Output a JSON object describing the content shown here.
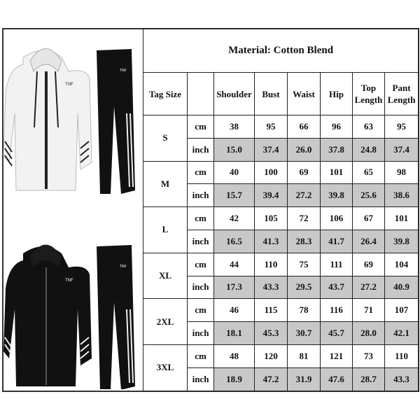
{
  "title": "Material: Cotton Blend",
  "headers": [
    "Tag Size",
    "",
    "Shoulder",
    "Bust",
    "Waist",
    "Hip",
    "Top Length",
    "Pant Length"
  ],
  "header_lines": {
    "top": [
      "Top",
      "Length"
    ],
    "pant": [
      "Pant",
      "Length"
    ]
  },
  "units": [
    "cm",
    "inch"
  ],
  "sizes": [
    {
      "size": "S",
      "cm": [
        "38",
        "95",
        "66",
        "96",
        "63",
        "95"
      ],
      "inch": [
        "15.0",
        "37.4",
        "26.0",
        "37.8",
        "24.8",
        "37.4"
      ]
    },
    {
      "size": "M",
      "cm": [
        "40",
        "100",
        "69",
        "101",
        "65",
        "98"
      ],
      "inch": [
        "15.7",
        "39.4",
        "27.2",
        "39.8",
        "25.6",
        "38.6"
      ]
    },
    {
      "size": "L",
      "cm": [
        "42",
        "105",
        "72",
        "106",
        "67",
        "101"
      ],
      "inch": [
        "16.5",
        "41.3",
        "28.3",
        "41.7",
        "26.4",
        "39.8"
      ]
    },
    {
      "size": "XL",
      "cm": [
        "44",
        "110",
        "75",
        "111",
        "69",
        "104"
      ],
      "inch": [
        "17.3",
        "43.3",
        "29.5",
        "43.7",
        "27.2",
        "40.9"
      ]
    },
    {
      "size": "2XL",
      "cm": [
        "46",
        "115",
        "78",
        "116",
        "71",
        "107"
      ],
      "inch": [
        "18.1",
        "45.3",
        "30.7",
        "45.7",
        "28.0",
        "42.1"
      ]
    },
    {
      "size": "3XL",
      "cm": [
        "48",
        "120",
        "81",
        "121",
        "73",
        "110"
      ],
      "inch": [
        "18.9",
        "47.2",
        "31.9",
        "47.6",
        "28.7",
        "43.3"
      ]
    }
  ],
  "logo_text": "THE NORTH FACE",
  "colors": {
    "inch_row_bg": "#c8c8c8",
    "white_set": "#f2f2f2",
    "black_set": "#111111"
  }
}
